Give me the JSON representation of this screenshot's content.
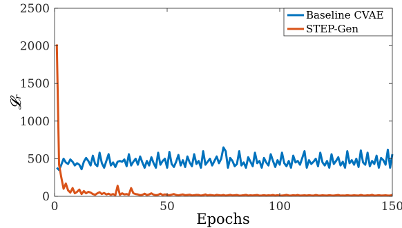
{
  "chart_data": {
    "type": "line",
    "title": "",
    "xlabel": "Epochs",
    "ylabel": "𝓛ᵣ",
    "xlim": [
      0,
      150
    ],
    "ylim": [
      0,
      2500
    ],
    "xticks": [
      0,
      50,
      100,
      150
    ],
    "yticks": [
      0,
      500,
      1000,
      1500,
      2000,
      2500
    ],
    "xtick_labels": [
      "0",
      "50",
      "100",
      "150"
    ],
    "ytick_labels": [
      "0",
      "500",
      "1000",
      "1500",
      "2000",
      "2500"
    ],
    "grid": false,
    "legend_position": "top-right",
    "series": [
      {
        "name": "Baseline CVAE",
        "color": "#0072BD",
        "x": [
          1,
          2,
          3,
          4,
          5,
          6,
          7,
          8,
          9,
          10,
          11,
          12,
          13,
          14,
          15,
          16,
          17,
          18,
          19,
          20,
          21,
          22,
          23,
          24,
          25,
          26,
          27,
          28,
          29,
          30,
          31,
          32,
          33,
          34,
          35,
          36,
          37,
          38,
          39,
          40,
          41,
          42,
          43,
          44,
          45,
          46,
          47,
          48,
          49,
          50,
          51,
          52,
          53,
          54,
          55,
          56,
          57,
          58,
          59,
          60,
          61,
          62,
          63,
          64,
          65,
          66,
          67,
          68,
          69,
          70,
          71,
          72,
          73,
          74,
          75,
          76,
          77,
          78,
          79,
          80,
          81,
          82,
          83,
          84,
          85,
          86,
          87,
          88,
          89,
          90,
          91,
          92,
          93,
          94,
          95,
          96,
          97,
          98,
          99,
          100,
          101,
          102,
          103,
          104,
          105,
          106,
          107,
          108,
          109,
          110,
          111,
          112,
          113,
          114,
          115,
          116,
          117,
          118,
          119,
          120,
          121,
          122,
          123,
          124,
          125,
          126,
          127,
          128,
          129,
          130,
          131,
          132,
          133,
          134,
          135,
          136,
          137,
          138,
          139,
          140,
          141,
          142,
          143,
          144,
          145,
          146,
          147,
          148,
          149,
          150
        ],
        "values": [
          380,
          350,
          420,
          500,
          450,
          430,
          490,
          460,
          410,
          440,
          420,
          360,
          460,
          510,
          470,
          410,
          540,
          430,
          400,
          580,
          440,
          380,
          470,
          560,
          410,
          450,
          390,
          460,
          470,
          460,
          490,
          400,
          560,
          410,
          460,
          500,
          420,
          530,
          450,
          380,
          470,
          410,
          520,
          440,
          380,
          580,
          420,
          470,
          500,
          380,
          590,
          430,
          390,
          460,
          550,
          410,
          480,
          390,
          530,
          450,
          400,
          560,
          430,
          470,
          380,
          600,
          420,
          460,
          500,
          410,
          470,
          530,
          440,
          500,
          650,
          600,
          380,
          510,
          470,
          400,
          430,
          600,
          410,
          450,
          380,
          520,
          460,
          400,
          580,
          440,
          470,
          380,
          510,
          450,
          410,
          560,
          470,
          390,
          480,
          420,
          580,
          440,
          400,
          470,
          380,
          540,
          450,
          470,
          420,
          510,
          600,
          380,
          480,
          430,
          460,
          500,
          400,
          580,
          450,
          410,
          470,
          380,
          560,
          430,
          470,
          520,
          410,
          460,
          380,
          600,
          440,
          480,
          420,
          500,
          390,
          610,
          450,
          420,
          580,
          400,
          470,
          430,
          540,
          380,
          510,
          480,
          420,
          620,
          380,
          560
        ]
      },
      {
        "name": "STEP-Gen",
        "color": "#D95319",
        "x": [
          1,
          2,
          3,
          4,
          5,
          6,
          7,
          8,
          9,
          10,
          11,
          12,
          13,
          14,
          15,
          16,
          17,
          18,
          19,
          20,
          21,
          22,
          23,
          24,
          25,
          26,
          27,
          28,
          29,
          30,
          31,
          32,
          33,
          34,
          35,
          36,
          37,
          38,
          39,
          40,
          41,
          42,
          43,
          44,
          45,
          46,
          47,
          48,
          49,
          50,
          51,
          52,
          53,
          54,
          55,
          56,
          57,
          58,
          59,
          60,
          61,
          62,
          63,
          64,
          65,
          66,
          67,
          68,
          69,
          70,
          71,
          72,
          73,
          74,
          75,
          76,
          77,
          78,
          79,
          80,
          81,
          82,
          83,
          84,
          85,
          86,
          87,
          88,
          89,
          90,
          91,
          92,
          93,
          94,
          95,
          96,
          97,
          98,
          99,
          100,
          101,
          102,
          103,
          104,
          105,
          106,
          107,
          108,
          109,
          110,
          111,
          112,
          113,
          114,
          115,
          116,
          117,
          118,
          119,
          120,
          121,
          122,
          123,
          124,
          125,
          126,
          127,
          128,
          129,
          130,
          131,
          132,
          133,
          134,
          135,
          136,
          137,
          138,
          139,
          140,
          141,
          142,
          143,
          144,
          145,
          146,
          147,
          148,
          149,
          150
        ],
        "values": [
          2020,
          420,
          250,
          100,
          170,
          80,
          50,
          110,
          40,
          60,
          90,
          30,
          70,
          40,
          60,
          50,
          30,
          20,
          40,
          55,
          30,
          45,
          25,
          35,
          20,
          30,
          15,
          140,
          20,
          40,
          25,
          30,
          20,
          110,
          40,
          30,
          25,
          15,
          20,
          35,
          18,
          25,
          40,
          22,
          15,
          20,
          35,
          18,
          25,
          20,
          15,
          22,
          30,
          18,
          12,
          20,
          25,
          15,
          18,
          22,
          12,
          15,
          20,
          18,
          10,
          15,
          25,
          12,
          18,
          15,
          10,
          20,
          15,
          12,
          18,
          10,
          14,
          20,
          12,
          15,
          18,
          10,
          12,
          15,
          20,
          10,
          14,
          12,
          15,
          18,
          10,
          12,
          15,
          10,
          14,
          12,
          18,
          10,
          15,
          12,
          10,
          14,
          20,
          12,
          10,
          15,
          12,
          18,
          10,
          12,
          14,
          10,
          15,
          12,
          10,
          18,
          12,
          10,
          14,
          12,
          10,
          15,
          12,
          10,
          14,
          18,
          10,
          12,
          10,
          15,
          12,
          10,
          14,
          12,
          10,
          18,
          12,
          10,
          14,
          12,
          20,
          10,
          12,
          15,
          10,
          12,
          14,
          10,
          12,
          15
        ]
      }
    ]
  }
}
